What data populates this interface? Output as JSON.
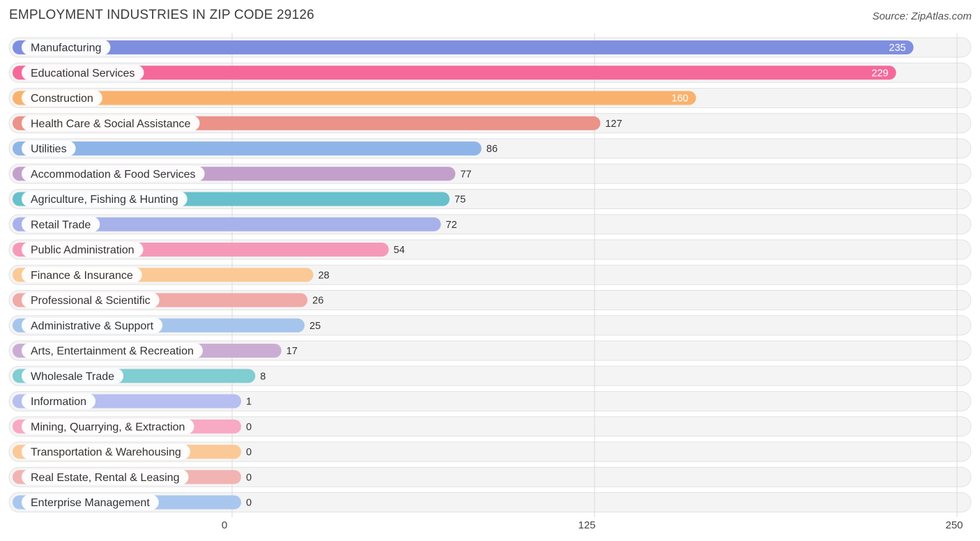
{
  "title": "EMPLOYMENT INDUSTRIES IN ZIP CODE 29126",
  "source": "Source: ZipAtlas.com",
  "chart_data": {
    "type": "bar",
    "orientation": "horizontal",
    "title": "EMPLOYMENT INDUSTRIES IN ZIP CODE 29126",
    "xlim": [
      0,
      250
    ],
    "ticks": [
      0,
      125,
      250
    ],
    "tick_labels": [
      "0",
      "125",
      "250"
    ],
    "grid": true,
    "categories": [
      "Manufacturing",
      "Educational Services",
      "Construction",
      "Health Care & Social Assistance",
      "Utilities",
      "Accommodation & Food Services",
      "Agriculture, Fishing & Hunting",
      "Retail Trade",
      "Public Administration",
      "Finance & Insurance",
      "Professional & Scientific",
      "Administrative & Support",
      "Arts, Entertainment & Recreation",
      "Wholesale Trade",
      "Information",
      "Mining, Quarrying, & Extraction",
      "Transportation & Warehousing",
      "Real Estate, Rental & Leasing",
      "Enterprise Management"
    ],
    "values": [
      235,
      229,
      160,
      127,
      86,
      77,
      75,
      72,
      54,
      28,
      26,
      25,
      17,
      8,
      1,
      0,
      0,
      0,
      0
    ],
    "colors": [
      "#7f8fe0",
      "#f5699a",
      "#f9b26d",
      "#eb9289",
      "#8fb5e8",
      "#c3a0cb",
      "#67c0cb",
      "#a7b2ea",
      "#f699b8",
      "#fbc995",
      "#f0aaa8",
      "#a6c5ec",
      "#cbadd3",
      "#80cdd2",
      "#b6bff0",
      "#f8a9c4",
      "#fbc996",
      "#f1b4b2",
      "#a9c7ee"
    ]
  }
}
